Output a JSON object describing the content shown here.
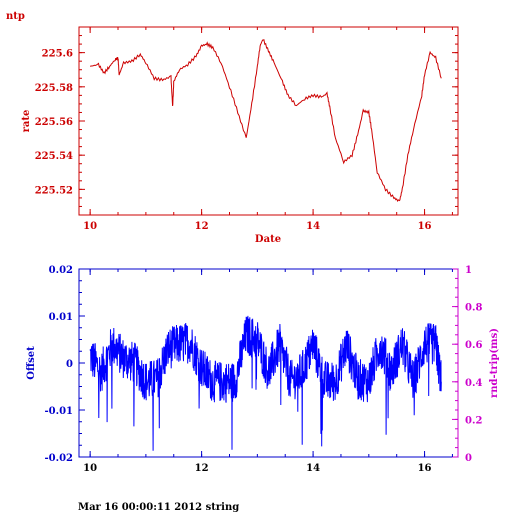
{
  "top_panel_title": "ntp",
  "footer_text": "Mar 16 00:00:11 2012 string",
  "colors": {
    "top": "#cc0000",
    "bottom_axes": "#0000cc",
    "offset_series": "#0000ff",
    "right_axis": "#cc00cc"
  },
  "chart_data": [
    {
      "type": "line",
      "title": "ntp",
      "xlabel": "Date",
      "ylabel": "rate",
      "xlim": [
        9.8,
        16.6
      ],
      "ylim": [
        225.505,
        225.615
      ],
      "x_ticks": [
        "10",
        "12",
        "14",
        "16"
      ],
      "y_ticks": [
        "225.52",
        "225.54",
        "225.56",
        "225.58",
        "225.6"
      ],
      "series": [
        {
          "x": [
            10.0,
            10.15,
            10.25,
            10.35,
            10.45,
            10.5,
            10.52,
            10.6,
            10.75,
            10.9,
            11.0,
            11.15,
            11.3,
            11.45,
            11.48,
            11.5,
            11.6,
            11.75,
            11.9,
            12.0,
            12.1,
            12.2,
            12.35,
            12.5,
            12.65,
            12.8,
            12.9,
            13.0,
            13.05,
            13.1,
            13.2,
            13.3,
            13.45,
            13.55,
            13.7,
            13.85,
            14.0,
            14.15,
            14.25,
            14.3,
            14.4,
            14.55,
            14.7,
            14.8,
            14.9,
            15.0,
            15.05,
            15.15,
            15.3,
            15.45,
            15.55,
            15.6,
            15.7,
            15.8,
            15.95,
            16.0,
            16.1,
            16.2,
            16.3
          ],
          "y": [
            225.592,
            225.593,
            225.588,
            225.592,
            225.596,
            225.597,
            225.587,
            225.594,
            225.595,
            225.599,
            225.594,
            225.585,
            225.584,
            225.586,
            225.568,
            225.583,
            225.59,
            225.593,
            225.598,
            225.604,
            225.605,
            225.603,
            225.594,
            225.58,
            225.565,
            225.55,
            225.57,
            225.592,
            225.604,
            225.608,
            225.601,
            225.594,
            225.583,
            225.575,
            225.569,
            225.573,
            225.575,
            225.574,
            225.576,
            225.568,
            225.55,
            225.536,
            225.54,
            225.552,
            225.566,
            225.565,
            225.555,
            225.53,
            225.52,
            225.515,
            225.513,
            225.52,
            225.54,
            225.555,
            225.575,
            225.587,
            225.6,
            225.597,
            225.585
          ]
        }
      ]
    },
    {
      "type": "line",
      "ylabel": "Offset",
      "y2label": "rnd-trip(ms)",
      "xlim": [
        9.8,
        16.6
      ],
      "ylim": [
        -0.02,
        0.02
      ],
      "y2lim": [
        0,
        1
      ],
      "x_ticks": [
        "10",
        "12",
        "14",
        "16"
      ],
      "y_ticks": [
        "-0.02",
        "-0.01",
        "0",
        "0.01",
        "0.02"
      ],
      "y2_ticks": [
        "0",
        "0.2",
        "0.4",
        "0.6",
        "0.8",
        "1"
      ],
      "series": [
        {
          "x": [
            10.0,
            10.2,
            10.4,
            10.6,
            10.8,
            11.0,
            11.2,
            11.4,
            11.6,
            11.8,
            12.0,
            12.2,
            12.4,
            12.6,
            12.8,
            13.0,
            13.2,
            13.4,
            13.6,
            13.8,
            14.0,
            14.2,
            14.4,
            14.6,
            14.8,
            15.0,
            15.2,
            15.4,
            15.6,
            15.8,
            16.0,
            16.2,
            16.3
          ],
          "y": [
            0.0015,
            -0.002,
            0.004,
            0.001,
            0.0,
            -0.004,
            -0.0035,
            0.003,
            0.004,
            0.0045,
            -0.001,
            -0.004,
            -0.004,
            -0.004,
            0.006,
            0.005,
            -0.002,
            0.004,
            -0.004,
            -0.002,
            0.004,
            -0.004,
            -0.004,
            0.004,
            -0.0035,
            -0.004,
            0.004,
            -0.002,
            0.004,
            -0.004,
            0.004,
            0.004,
            -0.004
          ]
        }
      ]
    }
  ]
}
